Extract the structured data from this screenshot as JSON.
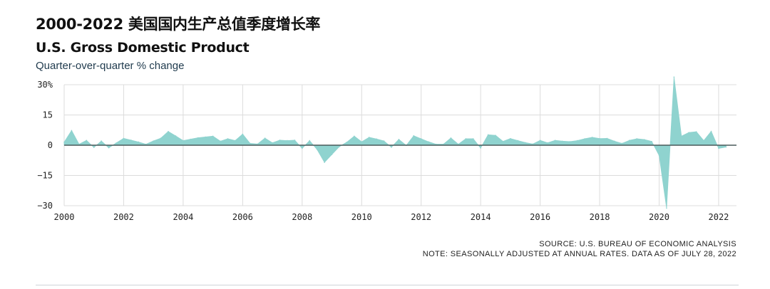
{
  "main_title": "2000-2022 美国国内生产总值季度增长率",
  "chart_title": "U.S. Gross Domestic Product",
  "chart_subtitle": "Quarter-over-quarter % change",
  "source_line": "SOURCE: U.S. BUREAU OF ECONOMIC ANALYSIS",
  "note_line": "NOTE: SEASONALLY ADJUSTED AT ANNUAL RATES. DATA AS OF JULY 28, 2022",
  "colors": {
    "area_fill": "#8fd3cf",
    "zero_line": "#4a5a5a",
    "grid": "#dcdcdc"
  },
  "chart_data": {
    "type": "area",
    "title": "U.S. Gross Domestic Product",
    "subtitle": "Quarter-over-quarter % change",
    "xlabel": "",
    "ylabel": "",
    "xlim": [
      2000,
      2022.6
    ],
    "ylim": [
      -30,
      30
    ],
    "grid": true,
    "y_ticks": [
      30,
      15,
      0,
      -15,
      -30
    ],
    "y_tick_labels": [
      "30%",
      "15",
      "0",
      "−15",
      "−30"
    ],
    "x_ticks": [
      2000,
      2002,
      2004,
      2006,
      2008,
      2010,
      2012,
      2014,
      2016,
      2018,
      2020,
      2022
    ],
    "x_tick_labels": [
      "2000",
      "2002",
      "2004",
      "2006",
      "2008",
      "2010",
      "2012",
      "2014",
      "2016",
      "2018",
      "2020",
      "2022"
    ],
    "series": [
      {
        "x": [
          2000.0,
          2000.25,
          2000.5,
          2000.75,
          2001.0,
          2001.25,
          2001.5,
          2001.75,
          2002.0,
          2002.25,
          2002.5,
          2002.75,
          2003.0,
          2003.25,
          2003.5,
          2003.75,
          2004.0,
          2004.25,
          2004.5,
          2004.75,
          2005.0,
          2005.25,
          2005.5,
          2005.75,
          2006.0,
          2006.25,
          2006.5,
          2006.75,
          2007.0,
          2007.25,
          2007.5,
          2007.75,
          2008.0,
          2008.25,
          2008.5,
          2008.75,
          2009.0,
          2009.25,
          2009.5,
          2009.75,
          2010.0,
          2010.25,
          2010.5,
          2010.75,
          2011.0,
          2011.25,
          2011.5,
          2011.75,
          2012.0,
          2012.25,
          2012.5,
          2012.75,
          2013.0,
          2013.25,
          2013.5,
          2013.75,
          2014.0,
          2014.25,
          2014.5,
          2014.75,
          2015.0,
          2015.25,
          2015.5,
          2015.75,
          2016.0,
          2016.25,
          2016.5,
          2016.75,
          2017.0,
          2017.25,
          2017.5,
          2017.75,
          2018.0,
          2018.25,
          2018.5,
          2018.75,
          2019.0,
          2019.25,
          2019.5,
          2019.75,
          2020.0,
          2020.25,
          2020.5,
          2020.75,
          2021.0,
          2021.25,
          2021.5,
          2021.75,
          2022.0,
          2022.25
        ],
        "values": [
          1.5,
          7.3,
          0.5,
          2.4,
          -1.1,
          2.1,
          -1.3,
          1.1,
          3.4,
          2.5,
          1.6,
          0.5,
          2.1,
          3.5,
          6.8,
          4.6,
          2.3,
          3.0,
          3.7,
          4.1,
          4.5,
          2.0,
          3.2,
          2.3,
          5.5,
          0.9,
          0.6,
          3.5,
          1.2,
          2.5,
          2.3,
          2.5,
          -1.6,
          2.3,
          -2.1,
          -8.5,
          -4.6,
          -0.7,
          1.5,
          4.5,
          1.7,
          3.9,
          3.1,
          2.1,
          -1.0,
          2.9,
          -0.1,
          4.7,
          3.2,
          1.7,
          0.5,
          0.5,
          3.6,
          0.5,
          3.2,
          3.2,
          -1.4,
          5.2,
          4.9,
          1.9,
          3.3,
          2.3,
          1.3,
          0.6,
          2.4,
          1.2,
          2.4,
          2.0,
          1.8,
          2.3,
          3.2,
          3.9,
          3.3,
          3.4,
          2.0,
          0.9,
          2.4,
          3.2,
          2.8,
          1.9,
          -5.1,
          -31.2,
          33.8,
          4.5,
          6.3,
          6.7,
          2.3,
          6.9,
          -1.6,
          -0.9
        ]
      }
    ]
  }
}
